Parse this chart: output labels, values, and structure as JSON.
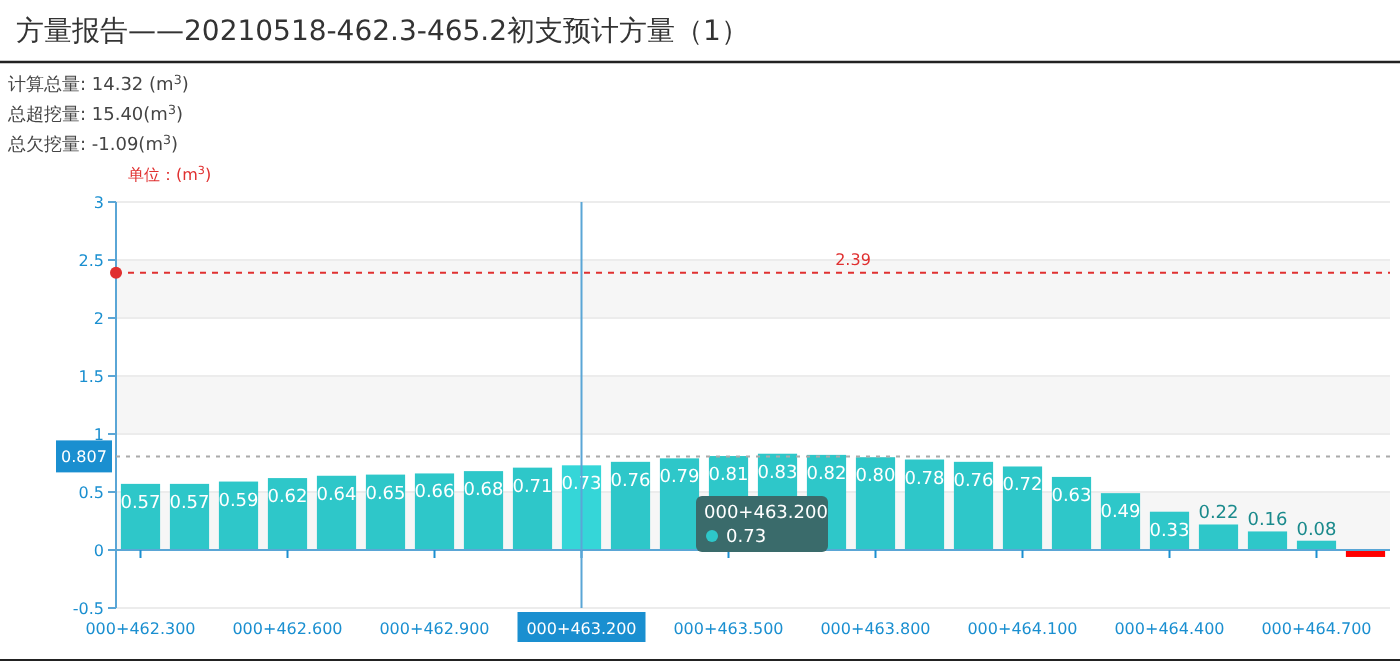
{
  "chart_data": {
    "type": "bar",
    "title": "方量报告——20210518-462.3-465.2初支预计方量（1）",
    "ylabel": "单位：(m$^{3}$)",
    "annotations": [
      "计算总量: 14.32 (m$^{3}$)",
      "总超挖量: 15.40(m$^{3}$)",
      "总欠挖量: -1.09(m$^{3}$)",
      "000+463.200\n0.73"
    ],
    "categories": [
      "000+462.300",
      null,
      null,
      "000+462.600",
      null,
      null,
      "000+462.900",
      null,
      null,
      "000+463.200",
      null,
      null,
      "000+463.500",
      null,
      null,
      "000+463.800",
      null,
      null,
      "000+464.100",
      null,
      null,
      "000+464.400",
      null,
      null,
      "000+464.700",
      null
    ],
    "values": [
      0.57,
      0.57,
      0.59,
      0.62,
      0.64,
      0.65,
      0.66,
      0.68,
      0.71,
      0.73,
      0.76,
      0.79,
      0.81,
      0.83,
      0.82,
      0.8,
      0.78,
      0.76,
      0.72,
      0.63,
      0.49,
      0.33,
      0.22,
      0.16,
      0.08,
      -0.06
    ],
    "value_labels": [
      "0.57",
      "0.57",
      "0.59",
      "0.62",
      "0.64",
      "0.65",
      "0.66",
      "0.68",
      "0.71",
      "0.73",
      "0.76",
      "0.79",
      "0.81",
      "0.83",
      "0.82",
      "0.80",
      "0.78",
      "0.76",
      "0.72",
      "0.63",
      "0.49",
      "0.33",
      "0.22",
      "0.16",
      "0.08",
      null
    ],
    "colors": [
      "#2ec7c9",
      "#2ec7c9",
      "#2ec7c9",
      "#2ec7c9",
      "#2ec7c9",
      "#2ec7c9",
      "#2ec7c9",
      "#2ec7c9",
      "#2ec7c9",
      "#35d6d8",
      "#2ec7c9",
      "#2ec7c9",
      "#2ec7c9",
      "#2ec7c9",
      "#2ec7c9",
      "#2ec7c9",
      "#2ec7c9",
      "#2ec7c9",
      "#2ec7c9",
      "#2ec7c9",
      "#2ec7c9",
      "#2ec7c9",
      "#2ec7c9",
      "#2ec7c9",
      "#2ec7c9",
      "#ff0000"
    ],
    "ylim": [
      -0.5,
      3
    ],
    "yticks": [
      -0.5,
      0,
      0.5,
      1,
      1.5,
      2,
      2.5,
      3
    ],
    "grid": "y",
    "ref_lines": [
      {
        "axis": "y",
        "value": 2.39,
        "label": "2.39",
        "color": "#e03030",
        "line_style": "dashed"
      },
      {
        "axis": "y",
        "value": 0.807,
        "label": "0.807",
        "color": "#aaaaaa",
        "line_style": "dotted"
      },
      {
        "axis": "x",
        "value": "000+463.200",
        "label": null,
        "color": "#5aa6d6",
        "line_style": "solid"
      }
    ]
  }
}
